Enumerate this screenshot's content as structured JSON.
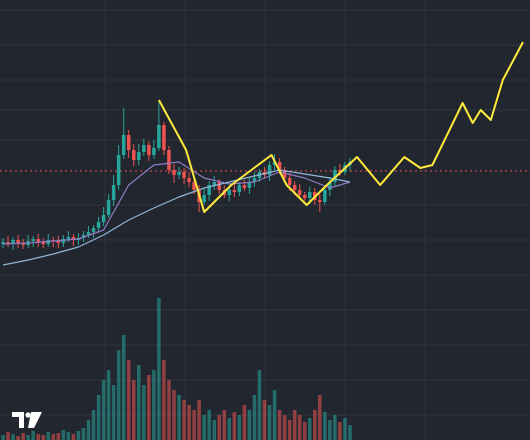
{
  "chart_data": {
    "type": "candlestick",
    "up_color": "#26a69a",
    "down_color": "#ef5350",
    "xlim": [
      -0.6,
      104.8
    ],
    "ylim": [
      0,
      440
    ],
    "volume_ylim": [
      0,
      150
    ],
    "open": [
      196,
      198,
      196,
      200,
      197,
      195,
      199,
      201,
      198,
      196,
      200,
      199,
      197,
      201,
      203,
      200,
      202,
      205,
      208,
      212,
      218,
      225,
      240,
      255,
      285,
      305,
      290,
      280,
      288,
      295,
      285,
      292,
      315,
      290,
      270,
      265,
      268,
      262,
      258,
      250,
      238,
      245,
      255,
      258,
      250,
      245,
      250,
      248,
      255,
      252,
      258,
      262,
      268,
      265,
      275,
      278,
      270,
      262,
      255,
      250,
      245,
      242,
      248,
      240,
      238,
      250,
      258,
      270,
      268,
      275
    ],
    "high": [
      202,
      204,
      203,
      205,
      201,
      205,
      204,
      206,
      202,
      206,
      203,
      204,
      205,
      209,
      206,
      207,
      209,
      214,
      215,
      223,
      233,
      246,
      265,
      295,
      332,
      310,
      296,
      296,
      301,
      299,
      300,
      340,
      318,
      294,
      276,
      273,
      272,
      268,
      261,
      255,
      251,
      259,
      264,
      261,
      255,
      254,
      256,
      258,
      260,
      262,
      268,
      271,
      273,
      279,
      286,
      282,
      273,
      267,
      259,
      256,
      248,
      253,
      252,
      246,
      253,
      263,
      274,
      276,
      278,
      282
    ],
    "low": [
      192,
      193,
      190,
      192,
      191,
      192,
      193,
      193,
      192,
      193,
      193,
      192,
      193,
      198,
      194,
      195,
      198,
      202,
      202,
      207,
      214,
      222,
      234,
      250,
      281,
      282,
      274,
      275,
      284,
      279,
      281,
      289,
      285,
      266,
      257,
      261,
      256,
      253,
      246,
      228,
      235,
      239,
      250,
      246,
      242,
      239,
      243,
      244,
      249,
      246,
      253,
      258,
      262,
      259,
      270,
      266,
      259,
      249,
      245,
      241,
      239,
      236,
      235,
      228,
      235,
      244,
      253,
      264,
      265,
      269
    ],
    "close": [
      198,
      196,
      200,
      197,
      195,
      199,
      201,
      198,
      196,
      200,
      199,
      197,
      201,
      203,
      200,
      202,
      205,
      208,
      212,
      218,
      225,
      240,
      255,
      285,
      305,
      290,
      280,
      288,
      295,
      285,
      292,
      315,
      290,
      270,
      265,
      268,
      262,
      258,
      250,
      238,
      245,
      255,
      258,
      250,
      245,
      250,
      248,
      255,
      252,
      258,
      262,
      268,
      265,
      275,
      278,
      270,
      262,
      255,
      250,
      245,
      242,
      248,
      240,
      238,
      250,
      258,
      270,
      268,
      275,
      278
    ],
    "volume": [
      5,
      8,
      6,
      4,
      7,
      5,
      9,
      6,
      5,
      8,
      6,
      7,
      10,
      8,
      6,
      9,
      12,
      20,
      30,
      45,
      60,
      70,
      55,
      90,
      105,
      80,
      60,
      75,
      55,
      65,
      70,
      142,
      80,
      60,
      50,
      45,
      40,
      35,
      30,
      40,
      25,
      30,
      20,
      25,
      30,
      22,
      28,
      25,
      35,
      30,
      45,
      70,
      40,
      35,
      50,
      30,
      25,
      20,
      30,
      25,
      18,
      22,
      30,
      45,
      28,
      20,
      25,
      18,
      22,
      15
    ],
    "price_line": 269,
    "price_line_color": "#ef5350",
    "lines": [
      {
        "color": "#8e7cc3",
        "x": [
          0,
          5,
          10,
          15,
          20,
          25,
          30,
          35,
          40,
          45,
          50,
          55,
          60,
          65,
          69
        ],
        "values": [
          196,
          197,
          199,
          201,
          210,
          255,
          275,
          278,
          262,
          256,
          258,
          268,
          262,
          252,
          258
        ]
      },
      {
        "color": "#8fb8d8",
        "x": [
          0,
          5,
          10,
          15,
          20,
          25,
          30,
          35,
          40,
          45,
          50,
          55,
          60,
          65,
          69
        ],
        "values": [
          175,
          180,
          186,
          193,
          205,
          220,
          232,
          243,
          252,
          258,
          264,
          270,
          266,
          262,
          258
        ]
      },
      {
        "color": "#ffeb3b",
        "x": [
          31,
          36.4,
          40,
          45.4,
          53.4,
          56.4,
          60.4,
          64.4,
          70.4,
          75,
          79.8,
          83,
          85.4,
          91.4,
          93.4,
          95,
          97,
          99.4,
          103.4
        ],
        "values": [
          340,
          290,
          228,
          255,
          285,
          255,
          235,
          255,
          283,
          255,
          283,
          272,
          275,
          337,
          317,
          330,
          320,
          360,
          398
        ]
      }
    ]
  }
}
